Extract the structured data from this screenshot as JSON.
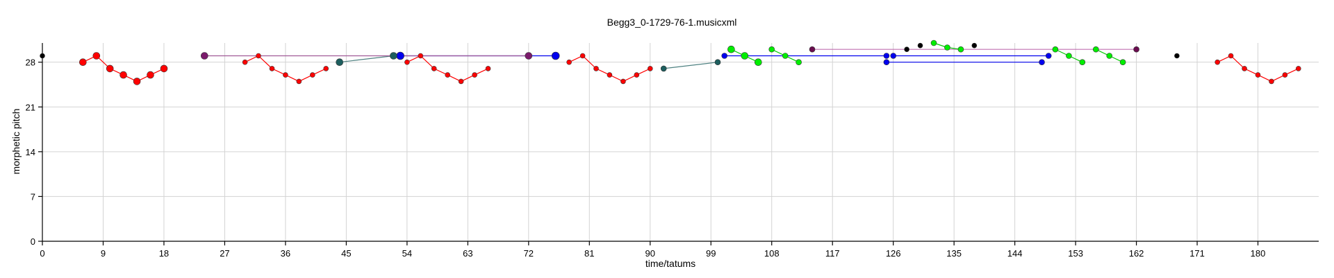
{
  "chart_data": {
    "type": "scatter",
    "title": "Begg3_0-1729-76-1.musicxml",
    "xlabel": "time/tatums",
    "ylabel": "morphetic pitch",
    "xlim": [
      0,
      189
    ],
    "ylim": [
      0,
      31
    ],
    "xticks": [
      0,
      9,
      18,
      27,
      36,
      45,
      54,
      63,
      72,
      81,
      90,
      99,
      108,
      117,
      126,
      135,
      144,
      153,
      162,
      171,
      180
    ],
    "yticks": [
      0,
      7,
      14,
      21,
      28
    ],
    "grid": true,
    "series": [
      {
        "color": "#ff0000",
        "line": "#ff0000",
        "size": 5,
        "points": [
          [
            6,
            28
          ],
          [
            8,
            29
          ],
          [
            10,
            27
          ],
          [
            12,
            26
          ],
          [
            14,
            25
          ],
          [
            16,
            26
          ],
          [
            18,
            27
          ]
        ]
      },
      {
        "color": "#ff0000",
        "line": "#ff0000",
        "size": 3.5,
        "points": [
          [
            30,
            28
          ],
          [
            32,
            29
          ],
          [
            34,
            27
          ],
          [
            36,
            26
          ],
          [
            38,
            25
          ],
          [
            40,
            26
          ],
          [
            42,
            27
          ]
        ]
      },
      {
        "color": "#ff0000",
        "line": "#ff0000",
        "size": 3.5,
        "points": [
          [
            54,
            28
          ],
          [
            56,
            29
          ],
          [
            58,
            27
          ],
          [
            60,
            26
          ],
          [
            62,
            25
          ],
          [
            64,
            26
          ],
          [
            66,
            27
          ]
        ]
      },
      {
        "color": "#ff0000",
        "line": "#ff0000",
        "size": 3.5,
        "points": [
          [
            78,
            28
          ],
          [
            80,
            29
          ],
          [
            82,
            27
          ],
          [
            84,
            26
          ],
          [
            86,
            25
          ],
          [
            88,
            26
          ],
          [
            90,
            27
          ]
        ]
      },
      {
        "color": "#ff0000",
        "line": "#ff0000",
        "size": 3.5,
        "points": [
          [
            174,
            28
          ],
          [
            176,
            29
          ],
          [
            178,
            27
          ],
          [
            180,
            26
          ],
          [
            182,
            25
          ],
          [
            184,
            26
          ],
          [
            186,
            27
          ]
        ]
      },
      {
        "color": "#0000ee",
        "line": "#0000ee",
        "size": 5.5,
        "points": [
          [
            53,
            29
          ],
          [
            76,
            29
          ]
        ]
      },
      {
        "color": "#0000ee",
        "line": "#0000ee",
        "size": 4,
        "points": [
          [
            101,
            29
          ],
          [
            125,
            29
          ]
        ]
      },
      {
        "color": "#0000ee",
        "line": "#0000ee",
        "size": 4,
        "points": [
          [
            126,
            29
          ],
          [
            149,
            29
          ]
        ]
      },
      {
        "color": "#0000ee",
        "line": "#0000ee",
        "size": 4,
        "points": [
          [
            125,
            28
          ],
          [
            148,
            28
          ]
        ]
      },
      {
        "color": "#1d5e5e",
        "line": "#4d8080",
        "size": 5,
        "points": [
          [
            44,
            28
          ],
          [
            52,
            29
          ]
        ]
      },
      {
        "color": "#1d5e5e",
        "line": "#4d8080",
        "size": 4,
        "points": [
          [
            92,
            27
          ],
          [
            100,
            28
          ]
        ]
      },
      {
        "color": "#7a1a6b",
        "line": "#a05a96",
        "size": 5,
        "points": [
          [
            24,
            29
          ],
          [
            72,
            29
          ]
        ]
      },
      {
        "color": "#6a0d4f",
        "line": "#c070b0",
        "size": 4,
        "points": [
          [
            114,
            30
          ],
          [
            162,
            30
          ]
        ]
      },
      {
        "color": "#00ee00",
        "line": "#00cc00",
        "size": 5,
        "points": [
          [
            102,
            30
          ],
          [
            104,
            29
          ],
          [
            106,
            28
          ]
        ]
      },
      {
        "color": "#00ee00",
        "line": "#00cc00",
        "size": 4,
        "points": [
          [
            108,
            30
          ],
          [
            110,
            29
          ],
          [
            112,
            28
          ]
        ]
      },
      {
        "color": "#00ee00",
        "line": "#00cc00",
        "size": 4,
        "points": [
          [
            132,
            31
          ],
          [
            134,
            30.3
          ],
          [
            136,
            30
          ]
        ]
      },
      {
        "color": "#00ee00",
        "line": "#00cc00",
        "size": 4,
        "points": [
          [
            150,
            30
          ],
          [
            152,
            29
          ],
          [
            154,
            28
          ]
        ]
      },
      {
        "color": "#00ee00",
        "line": "#00cc00",
        "size": 4,
        "points": [
          [
            156,
            30
          ],
          [
            158,
            29
          ],
          [
            160,
            28
          ]
        ]
      },
      {
        "color": "#000000",
        "line": null,
        "size": 3.5,
        "points": [
          [
            0,
            29
          ],
          [
            128,
            30
          ],
          [
            130,
            30.6
          ],
          [
            138,
            30.6
          ],
          [
            168,
            29
          ]
        ]
      }
    ]
  }
}
